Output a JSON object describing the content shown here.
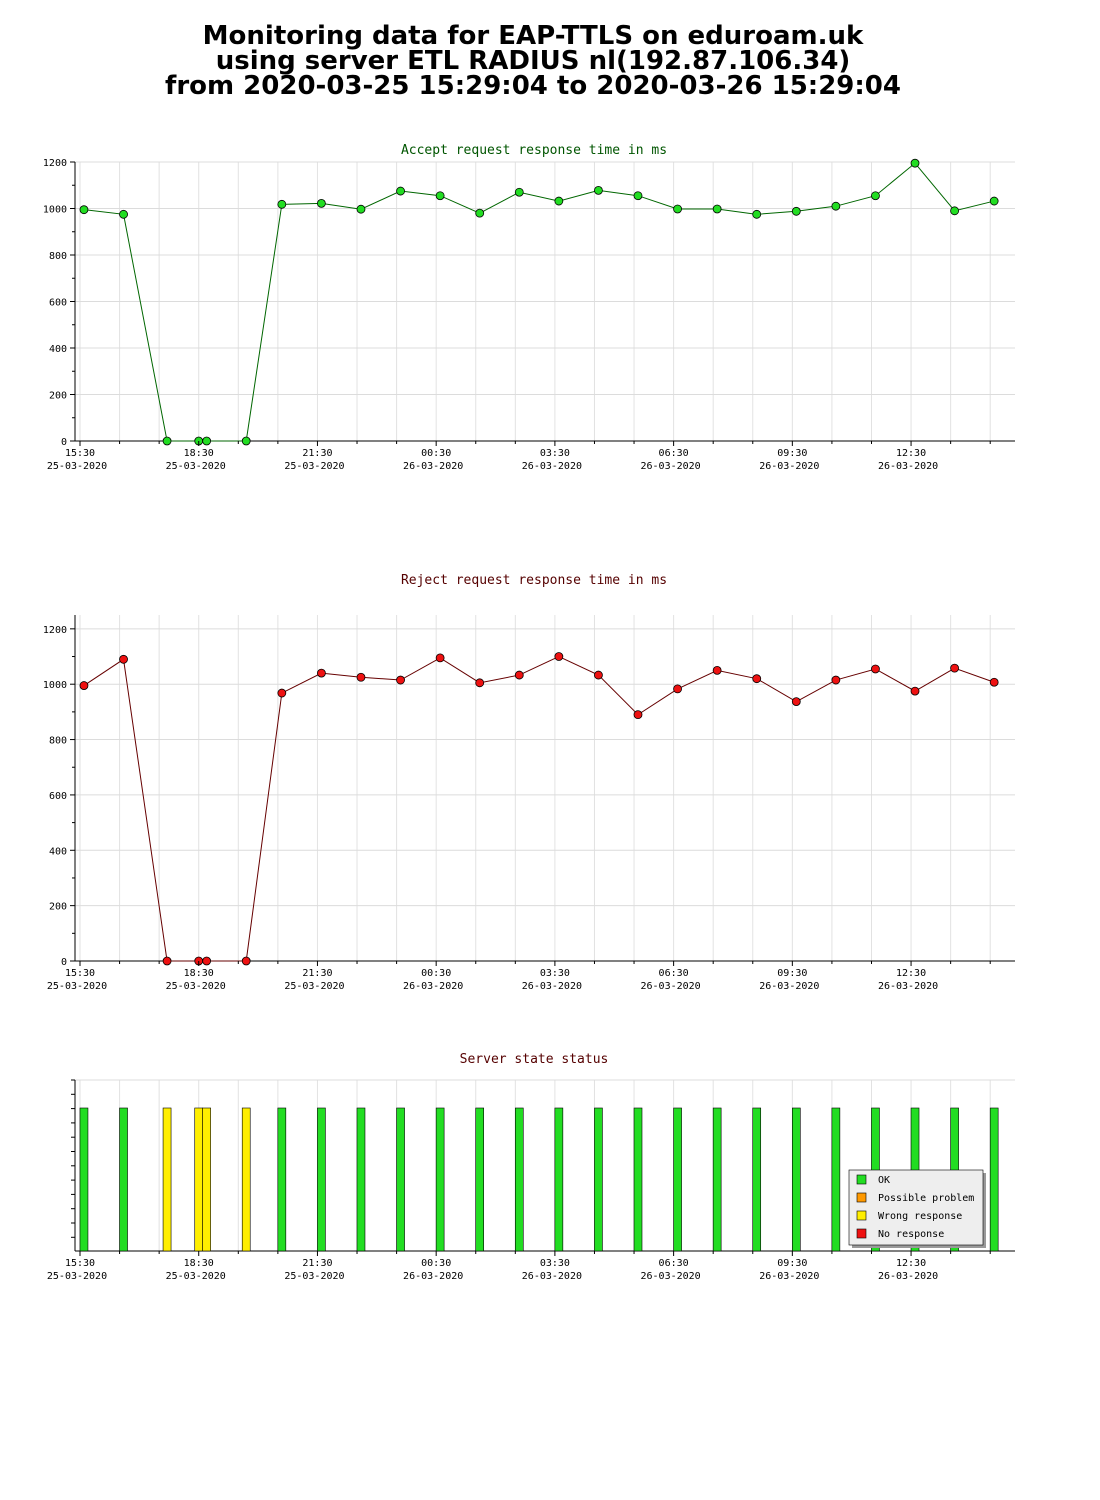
{
  "header": {
    "line1": "Monitoring data for EAP-TTLS on eduroam.uk",
    "line2": "using server ETL RADIUS nl(192.87.106.34)",
    "line3": "from 2020-03-25 15:29:04 to 2020-03-26 15:29:04"
  },
  "colors": {
    "accept_line": "#006600",
    "accept_marker": "#22dd22",
    "reject_line": "#660000",
    "reject_marker": "#ee1111",
    "ok": "#22dd22",
    "possible_problem": "#ff9900",
    "wrong_response": "#ffee00",
    "no_response": "#ee1111",
    "accept_title": "#005500",
    "reject_title": "#550000",
    "status_title": "#550000"
  },
  "x_ticks": [
    {
      "time": "15:30",
      "date": "25-03-2020",
      "hour": 0
    },
    {
      "time": "18:30",
      "date": "25-03-2020",
      "hour": 3
    },
    {
      "time": "21:30",
      "date": "25-03-2020",
      "hour": 6
    },
    {
      "time": "00:30",
      "date": "26-03-2020",
      "hour": 9
    },
    {
      "time": "03:30",
      "date": "26-03-2020",
      "hour": 12
    },
    {
      "time": "06:30",
      "date": "26-03-2020",
      "hour": 15
    },
    {
      "time": "09:30",
      "date": "26-03-2020",
      "hour": 18
    },
    {
      "time": "12:30",
      "date": "26-03-2020",
      "hour": 21
    }
  ],
  "chart_data": [
    {
      "type": "line",
      "title": "Accept request response time in ms",
      "xlabel": "",
      "ylabel": "",
      "ylim": [
        0,
        1200
      ],
      "y_ticks": [
        0,
        200,
        400,
        600,
        800,
        1000,
        1200
      ],
      "x_unit": "hours after 15:30 25-03-2020",
      "x": [
        0.1,
        1.1,
        2.2,
        3.0,
        3.2,
        4.2,
        5.1,
        6.1,
        7.1,
        8.1,
        9.1,
        10.1,
        11.1,
        12.1,
        13.1,
        14.1,
        15.1,
        16.1,
        17.1,
        18.1,
        19.1,
        20.1,
        21.1,
        22.1,
        23.1
      ],
      "series": [
        {
          "values": [
            995,
            975,
            0,
            0,
            0,
            0,
            1018,
            1022,
            997,
            1075,
            1055,
            980,
            1070,
            1032,
            1078,
            1055,
            998,
            998,
            975,
            988,
            1010,
            1055,
            1195,
            990,
            1032
          ]
        }
      ],
      "grid": true
    },
    {
      "type": "line",
      "title": "Reject request response time in ms",
      "xlabel": "",
      "ylabel": "",
      "ylim": [
        0,
        1250
      ],
      "y_ticks": [
        0,
        200,
        400,
        600,
        800,
        1000,
        1200
      ],
      "x_unit": "hours after 15:30 25-03-2020",
      "x": [
        0.1,
        1.1,
        2.2,
        3.0,
        3.2,
        4.2,
        5.1,
        6.1,
        7.1,
        8.1,
        9.1,
        10.1,
        11.1,
        12.1,
        13.1,
        14.1,
        15.1,
        16.1,
        17.1,
        18.1,
        19.1,
        20.1,
        21.1,
        22.1,
        23.1
      ],
      "series": [
        {
          "values": [
            995,
            1090,
            0,
            0,
            0,
            0,
            968,
            1040,
            1025,
            1015,
            1095,
            1005,
            1033,
            1100,
            1033,
            890,
            983,
            1050,
            1020,
            937,
            1015,
            1055,
            975,
            1058,
            1007
          ]
        }
      ],
      "grid": true
    },
    {
      "type": "bar",
      "title": "Server state status",
      "xlabel": "",
      "ylabel": "",
      "x_unit": "hours after 15:30 25-03-2020",
      "x": [
        0.1,
        1.1,
        2.2,
        3.0,
        3.2,
        4.2,
        5.1,
        6.1,
        7.1,
        8.1,
        9.1,
        10.1,
        11.1,
        12.1,
        13.1,
        14.1,
        15.1,
        16.1,
        17.1,
        18.1,
        19.1,
        20.1,
        21.1,
        22.1,
        23.1
      ],
      "states": [
        "ok",
        "ok",
        "wrong_response",
        "wrong_response",
        "wrong_response",
        "wrong_response",
        "ok",
        "ok",
        "ok",
        "ok",
        "ok",
        "ok",
        "ok",
        "ok",
        "ok",
        "ok",
        "ok",
        "ok",
        "ok",
        "ok",
        "ok",
        "ok",
        "ok",
        "ok",
        "ok"
      ],
      "legend": {
        "placement": "bottom-right",
        "items": [
          {
            "key": "ok",
            "label": "OK"
          },
          {
            "key": "possible_problem",
            "label": "Possible problem"
          },
          {
            "key": "wrong_response",
            "label": "Wrong response"
          },
          {
            "key": "no_response",
            "label": "No response"
          }
        ]
      }
    }
  ]
}
